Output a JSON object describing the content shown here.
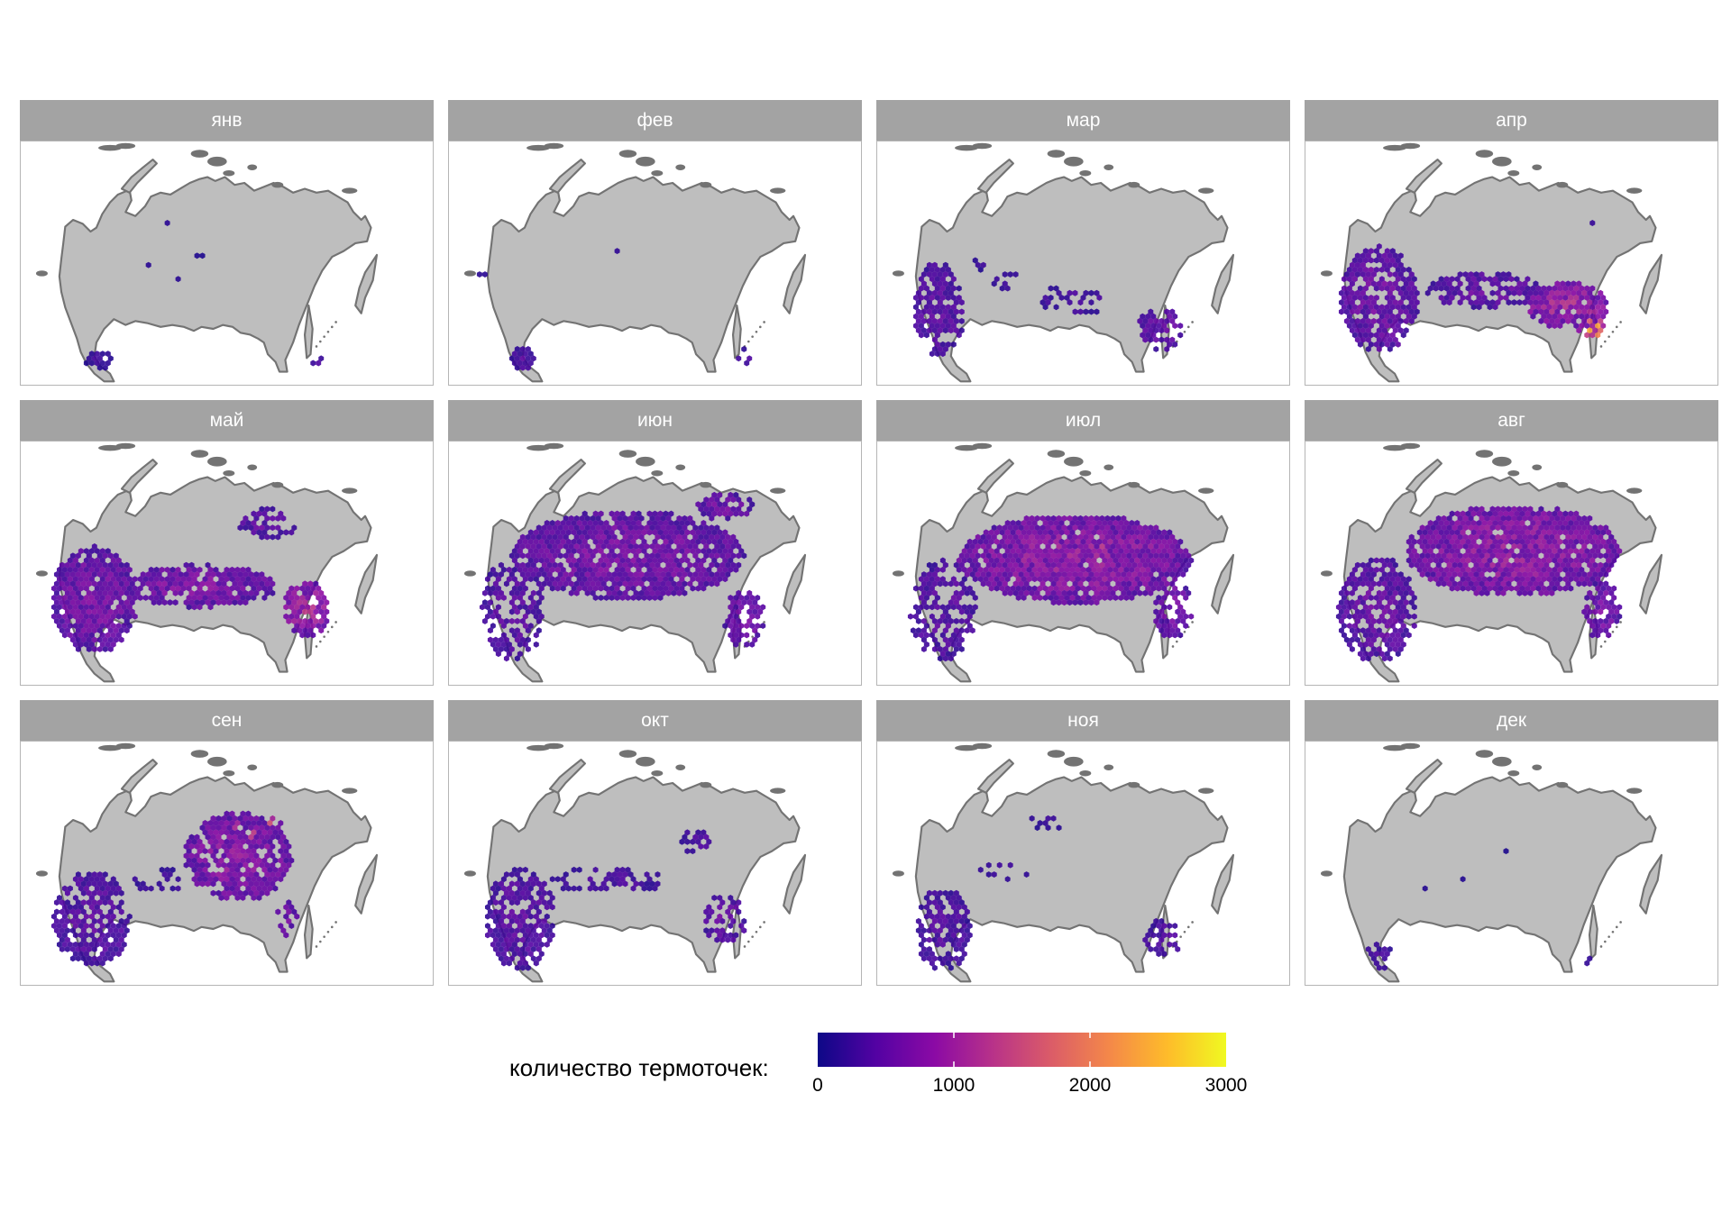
{
  "panels": [
    {
      "label": "янв"
    },
    {
      "label": "фев"
    },
    {
      "label": "мар"
    },
    {
      "label": "апр"
    },
    {
      "label": "май"
    },
    {
      "label": "июн"
    },
    {
      "label": "июл"
    },
    {
      "label": "авг"
    },
    {
      "label": "сен"
    },
    {
      "label": "окт"
    },
    {
      "label": "ноя"
    },
    {
      "label": "дек"
    }
  ],
  "legend": {
    "title": "количество термоточек:",
    "ticks": [
      "0",
      "1000",
      "2000",
      "3000"
    ],
    "min": 0,
    "max": 3000,
    "palette": [
      "#0d0887",
      "#5302a3",
      "#8b0aa5",
      "#b83289",
      "#db5c68",
      "#f48849",
      "#febc2a",
      "#f0f921"
    ]
  },
  "colors": {
    "strip": "#a3a3a3",
    "land": "#bebebe",
    "coast": "#737373"
  }
}
